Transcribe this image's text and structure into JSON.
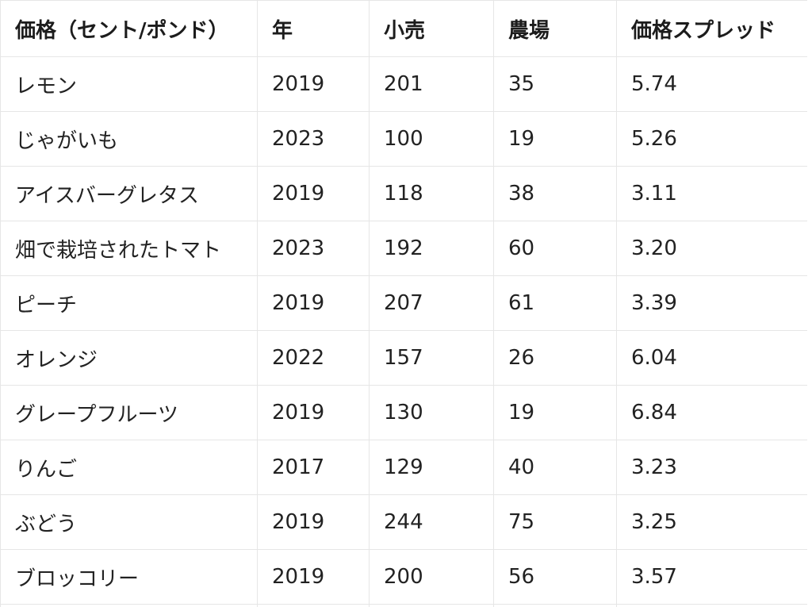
{
  "table": {
    "headers": [
      "価格（セント/ポンド）",
      "年",
      "小売",
      "農場",
      "価格スプレッド"
    ],
    "rows": [
      [
        "レモン",
        "2019",
        "201",
        "35",
        "5.74"
      ],
      [
        "じゃがいも",
        "2023",
        "100",
        "19",
        "5.26"
      ],
      [
        "アイスバーグレタス",
        "2019",
        "118",
        "38",
        "3.11"
      ],
      [
        "畑で栽培されたトマト",
        "2023",
        "192",
        "60",
        "3.20"
      ],
      [
        "ピーチ",
        "2019",
        "207",
        "61",
        "3.39"
      ],
      [
        "オレンジ",
        "2022",
        "157",
        "26",
        "6.04"
      ],
      [
        "グレープフルーツ",
        "2019",
        "130",
        "19",
        "6.84"
      ],
      [
        "りんご",
        "2017",
        "129",
        "40",
        "3.23"
      ],
      [
        "ぶどう",
        "2019",
        "244",
        "75",
        "3.25"
      ],
      [
        "ブロッコリー",
        "2019",
        "200",
        "56",
        "3.57"
      ]
    ]
  }
}
